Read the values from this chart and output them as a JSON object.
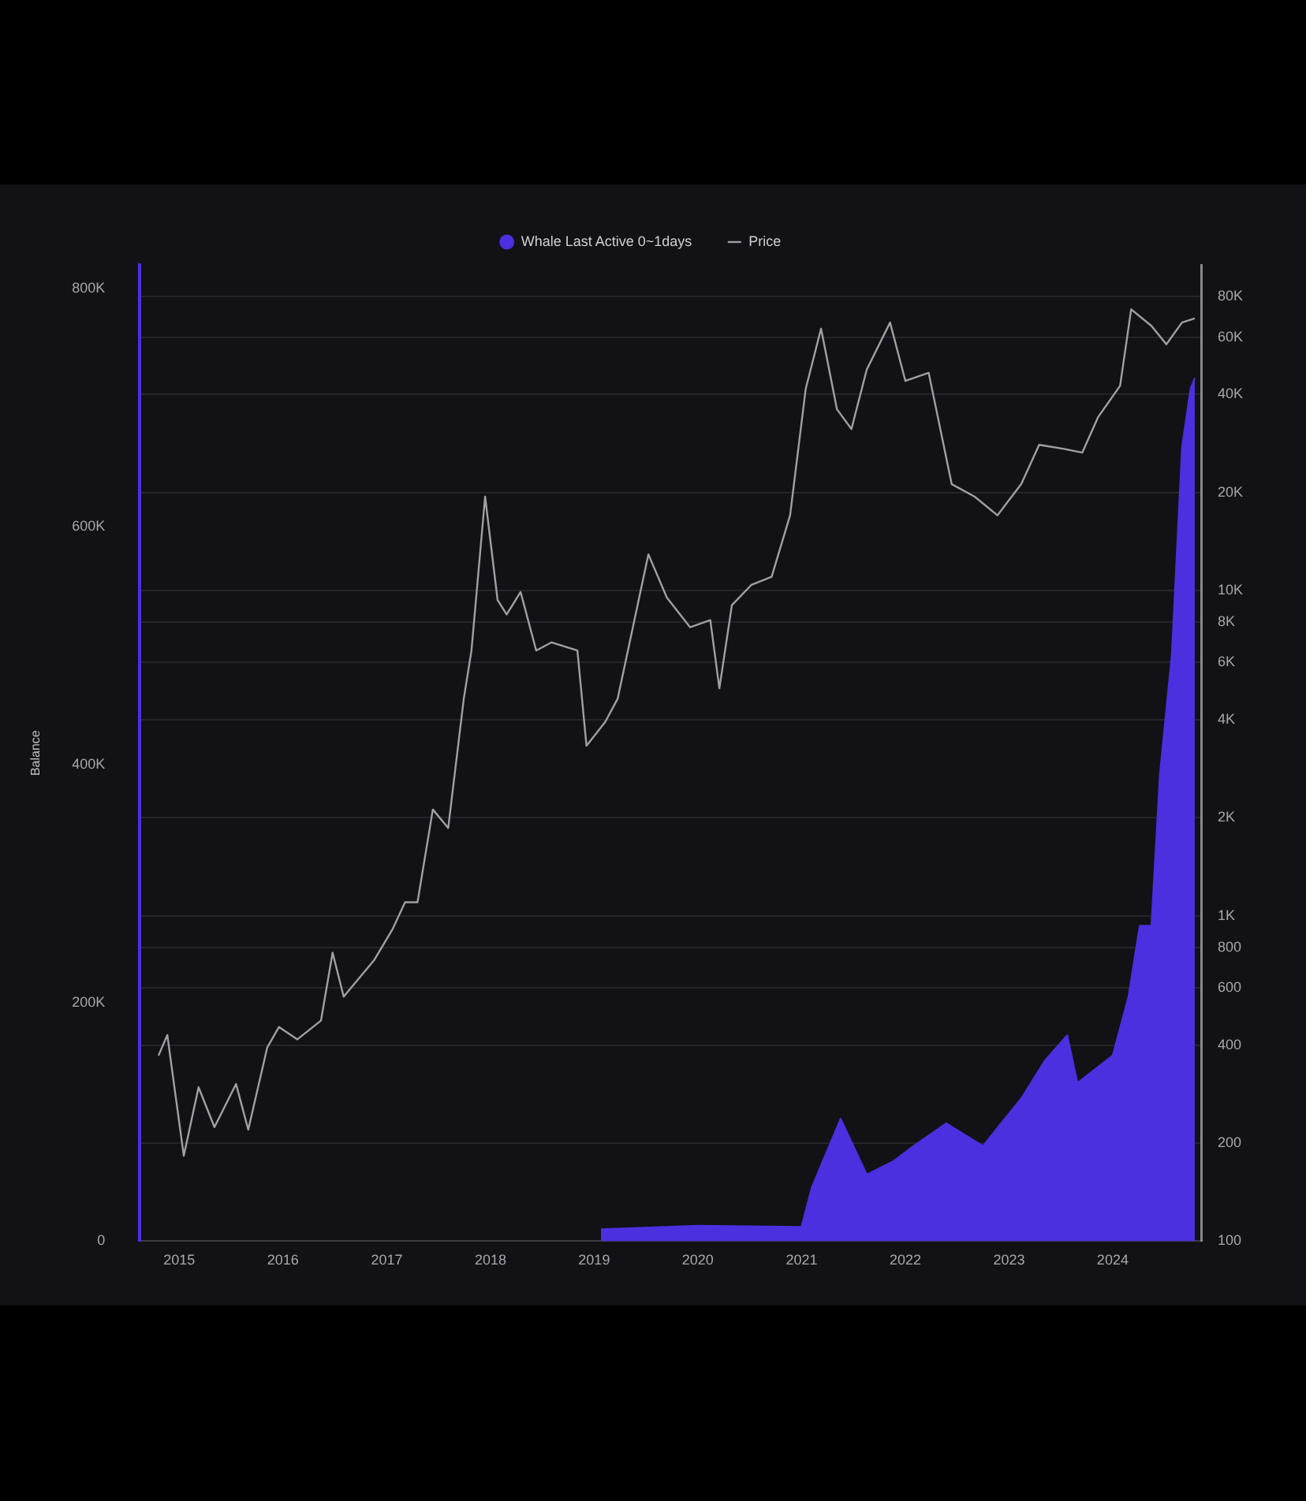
{
  "chart_data": {
    "type": "area",
    "ylabel": "Balance",
    "legend": "top",
    "grid": "y",
    "log": "y2",
    "xlim": [
      "2014-08-15",
      "2024-11-10"
    ],
    "xticks": [
      "2015",
      "2016",
      "2017",
      "2018",
      "2019",
      "2020",
      "2021",
      "2022",
      "2023",
      "2024"
    ],
    "ylim": [
      0,
      820000
    ],
    "yticks": [
      0,
      {
        "value": 200000,
        "label": "200K"
      },
      {
        "value": 400000,
        "label": "400K"
      },
      {
        "value": 600000,
        "label": "600K"
      },
      {
        "value": 800000,
        "label": "800K"
      }
    ],
    "y2lim": [
      100,
      100000
    ],
    "y2ticks": [
      100,
      200,
      400,
      600,
      800,
      {
        "value": 1000,
        "label": "1K"
      },
      {
        "value": 2000,
        "label": "2K"
      },
      {
        "value": 4000,
        "label": "4K"
      },
      {
        "value": 6000,
        "label": "6K"
      },
      {
        "value": 8000,
        "label": "8K"
      },
      {
        "value": 10000,
        "label": "10K"
      },
      {
        "value": 20000,
        "label": "20K"
      },
      {
        "value": 40000,
        "label": "40K"
      },
      {
        "value": 60000,
        "label": "60K"
      },
      {
        "value": 80000,
        "label": "80K"
      }
    ],
    "series": [
      {
        "name": "Whale Last Active 0~1days",
        "type": "area",
        "color": "#4b30e0",
        "x": [
          "2019-01-25",
          "2020-01-01",
          "2020-12-31",
          "2021-02-05",
          "2021-05-18",
          "2021-08-18",
          "2021-11-18",
          "2022-01-30",
          "2022-05-25",
          "2022-10-01",
          "2023-02-13",
          "2023-05-08",
          "2023-07-25",
          "2023-08-30",
          "2024-01-01",
          "2024-02-25",
          "2024-04-05",
          "2024-05-16",
          "2024-06-15",
          "2024-07-27",
          "2024-09-01",
          "2024-10-01",
          "2024-10-16"
        ],
        "values": [
          10000,
          13000,
          12000,
          45000,
          103000,
          56000,
          67000,
          80000,
          99000,
          80000,
          120000,
          152000,
          173000,
          133000,
          156000,
          205000,
          265000,
          265000,
          392000,
          493000,
          667000,
          716000,
          725000
        ]
      },
      {
        "name": "Price",
        "type": "line",
        "axis": "y2",
        "color": "#a0a0a0",
        "x": [
          "2014-10-20",
          "2014-11-20",
          "2014-12-15",
          "2015-01-17",
          "2015-03-10",
          "2015-05-05",
          "2015-07-20",
          "2015-09-01",
          "2015-11-07",
          "2015-12-18",
          "2016-02-21",
          "2016-05-14",
          "2016-06-24",
          "2016-08-02",
          "2016-11-17",
          "2017-01-22",
          "2017-03-06",
          "2017-04-19",
          "2017-06-12",
          "2017-08-05",
          "2017-09-29",
          "2017-10-26",
          "2017-12-13",
          "2018-01-26",
          "2018-02-27",
          "2018-04-17",
          "2018-06-11",
          "2018-08-04",
          "2018-11-03",
          "2018-12-05",
          "2019-02-09",
          "2019-03-25",
          "2019-07-11",
          "2019-09-14",
          "2019-12-05",
          "2020-02-14",
          "2020-03-17",
          "2020-04-30",
          "2020-07-08",
          "2020-09-17",
          "2020-11-21",
          "2021-01-15",
          "2021-03-10",
          "2021-05-05",
          "2021-06-25",
          "2021-08-18",
          "2021-11-08",
          "2022-01-01",
          "2022-03-24",
          "2022-06-13",
          "2022-09-02",
          "2022-11-21",
          "2023-02-13",
          "2023-04-17",
          "2023-07-13",
          "2023-09-16",
          "2023-11-10",
          "2024-01-27",
          "2024-03-06",
          "2024-05-16",
          "2024-07-08",
          "2024-09-01",
          "2024-10-16"
        ],
        "values": [
          372,
          430,
          297,
          183,
          297,
          224,
          304,
          220,
          394,
          455,
          417,
          476,
          770,
          564,
          730,
          912,
          1100,
          1100,
          2120,
          1860,
          4650,
          6530,
          19400,
          9330,
          8430,
          9880,
          6530,
          6920,
          6530,
          3330,
          3940,
          4650,
          12900,
          9500,
          7700,
          8100,
          5000,
          9000,
          10400,
          11000,
          17000,
          41600,
          63700,
          36000,
          31300,
          47700,
          66500,
          44000,
          46600,
          21200,
          19400,
          17000,
          21200,
          28000,
          27200,
          26500,
          34000,
          42500,
          73000,
          65000,
          57000,
          66500,
          68500
        ]
      }
    ]
  }
}
